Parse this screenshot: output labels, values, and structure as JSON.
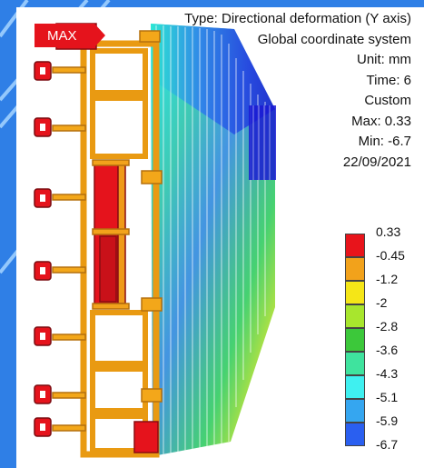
{
  "info": {
    "type": "Type: Directional deformation (Y axis)",
    "system": "Global coordinate system",
    "unit": "Unit: mm",
    "time": "Time: 6",
    "mode": "Custom",
    "max": "Max: 0.33",
    "min": "Min: -6.7",
    "date": "22/09/2021"
  },
  "max_tag": "MAX",
  "legend": {
    "labels": [
      "0.33",
      "-0.45",
      "-1.2",
      "-2",
      "-2.8",
      "-3.6",
      "-4.3",
      "-5.1",
      "-5.9",
      "-6.7"
    ],
    "colors": [
      "#e8141b",
      "#f2a21b",
      "#f5e617",
      "#a8e62d",
      "#3cc83a",
      "#3fe39e",
      "#3ff0f0",
      "#35a6f0",
      "#2a5ff0",
      "#1414d8"
    ]
  }
}
